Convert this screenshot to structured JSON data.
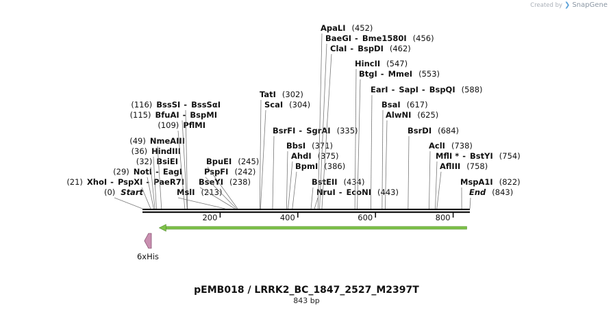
{
  "brand": {
    "created_by": "Created by",
    "logo": "SnapGene"
  },
  "plasmid": {
    "name": "pEMB018 / LRRK2_BC_1847_2527_M2397T",
    "length_label": "843 bp",
    "length": 843
  },
  "ruler": {
    "ticks": [
      200,
      400,
      600,
      800
    ]
  },
  "features": [
    {
      "name": "6xHis",
      "start": 5,
      "end": 23,
      "direction": "reverse",
      "color": "#c98fb0",
      "label": "6xHis"
    },
    {
      "name": "orf",
      "start": 43,
      "end": 835,
      "direction": "reverse",
      "color": "#7fc24a"
    }
  ],
  "sites": [
    {
      "pos": "(0)",
      "names": [
        "Start"
      ],
      "italic": true,
      "bp": 0
    },
    {
      "pos": "(21)",
      "names": [
        "XhoI",
        "PspXI",
        "PaeR7I"
      ],
      "bp": 21
    },
    {
      "pos": "(29)",
      "names": [
        "NotI",
        "EagI"
      ],
      "bp": 29
    },
    {
      "pos": "(32)",
      "names": [
        "BsiEI"
      ],
      "bp": 32
    },
    {
      "pos": "(36)",
      "names": [
        "HindIII"
      ],
      "bp": 36
    },
    {
      "pos": "(49)",
      "names": [
        "NmeAIII"
      ],
      "bp": 49
    },
    {
      "pos": "(109)",
      "names": [
        "PflMI"
      ],
      "bp": 109
    },
    {
      "pos": "(115)",
      "names": [
        "BfuAI",
        "BspMI"
      ],
      "bp": 115
    },
    {
      "pos": "(116)",
      "names": [
        "BssSI",
        "BssSαI"
      ],
      "bp": 116
    },
    {
      "pos": "(213)",
      "names": [
        "MslI"
      ],
      "bp": 213
    },
    {
      "pos": "(238)",
      "names": [
        "BseYI"
      ],
      "bp": 238
    },
    {
      "pos": "(242)",
      "names": [
        "PspFI"
      ],
      "bp": 242
    },
    {
      "pos": "(245)",
      "names": [
        "BpuEI"
      ],
      "bp": 245
    },
    {
      "pos": "(302)",
      "names": [
        "TatI"
      ],
      "bp": 302
    },
    {
      "pos": "(304)",
      "names": [
        "ScaI"
      ],
      "bp": 304
    },
    {
      "pos": "(335)",
      "names": [
        "BsrFI",
        "SgrAI"
      ],
      "bp": 335
    },
    {
      "pos": "(371)",
      "names": [
        "BbsI"
      ],
      "bp": 371
    },
    {
      "pos": "(375)",
      "names": [
        "AhdI"
      ],
      "bp": 375
    },
    {
      "pos": "(386)",
      "names": [
        "BpmI"
      ],
      "bp": 386
    },
    {
      "pos": "(434)",
      "names": [
        "BstEII"
      ],
      "bp": 434
    },
    {
      "pos": "(443)",
      "names": [
        "NruI",
        "EcoNI"
      ],
      "bp": 443
    },
    {
      "pos": "(452)",
      "names": [
        "ApaLI"
      ],
      "bp": 452
    },
    {
      "pos": "(456)",
      "names": [
        "BaeGI",
        "Bme1580I"
      ],
      "bp": 456
    },
    {
      "pos": "(462)",
      "names": [
        "ClaI",
        "BspDI"
      ],
      "bp": 462
    },
    {
      "pos": "(547)",
      "names": [
        "HincII"
      ],
      "bp": 547
    },
    {
      "pos": "(553)",
      "names": [
        "BtgI",
        "MmeI"
      ],
      "bp": 553
    },
    {
      "pos": "(588)",
      "names": [
        "EarI",
        "SapI",
        "BspQI"
      ],
      "bp": 588
    },
    {
      "pos": "(617)",
      "names": [
        "BsaI"
      ],
      "bp": 617
    },
    {
      "pos": "(625)",
      "names": [
        "AlwNI"
      ],
      "bp": 625
    },
    {
      "pos": "(684)",
      "names": [
        "BsrDI"
      ],
      "bp": 684
    },
    {
      "pos": "(738)",
      "names": [
        "AclI"
      ],
      "bp": 738
    },
    {
      "pos": "(754)",
      "names": [
        "MflI *",
        "BstYI"
      ],
      "bp": 754
    },
    {
      "pos": "(758)",
      "names": [
        "AflIII"
      ],
      "bp": 758
    },
    {
      "pos": "(822)",
      "names": [
        "MspA1I"
      ],
      "bp": 822
    },
    {
      "pos": "(843)",
      "names": [
        "End"
      ],
      "italic": true,
      "bp": 843
    }
  ]
}
